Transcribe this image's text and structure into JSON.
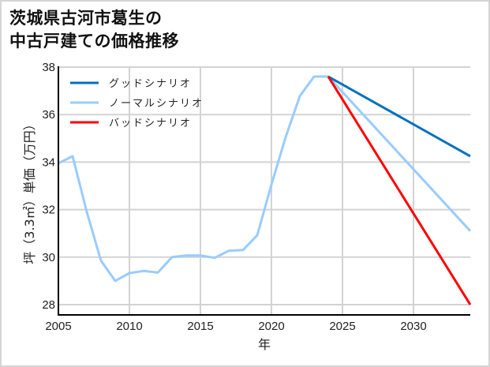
{
  "title": {
    "line1": "茨城県古河市葛生の",
    "line2": "中古戸建ての価格推移"
  },
  "chart_data": {
    "type": "line",
    "title": "茨城県古河市葛生の中古戸建ての価格推移",
    "xlabel": "年",
    "ylabel": "坪（3.3㎡）単価（万円）",
    "xlim": [
      2005,
      2034
    ],
    "ylim": [
      27.6,
      38
    ],
    "x_ticks": [
      2005,
      2010,
      2015,
      2020,
      2025,
      2030
    ],
    "y_ticks": [
      28,
      30,
      32,
      34,
      36,
      38
    ],
    "grid": true,
    "legend_position": "upper left",
    "series": [
      {
        "name": "ノーマルシナリオ",
        "color": "#99ccff",
        "x": [
          2005,
          2006,
          2007,
          2008,
          2009,
          2010,
          2011,
          2012,
          2013,
          2014,
          2015,
          2016,
          2017,
          2018,
          2019,
          2020,
          2021,
          2022,
          2023,
          2024,
          2034
        ],
        "values": [
          33.95,
          34.25,
          31.9,
          29.85,
          29.0,
          29.33,
          29.42,
          29.35,
          30.0,
          30.07,
          30.07,
          29.97,
          30.27,
          30.3,
          30.92,
          33.05,
          35.05,
          36.78,
          37.6,
          37.6,
          31.1
        ]
      },
      {
        "name": "グッドシナリオ",
        "color": "#0070c0",
        "x": [
          2024,
          2034
        ],
        "values": [
          37.6,
          34.25
        ]
      },
      {
        "name": "バッドシナリオ",
        "color": "#ff0000",
        "x": [
          2024,
          2034
        ],
        "values": [
          37.6,
          28.0
        ]
      }
    ]
  },
  "legend": {
    "items": [
      {
        "label": "グッドシナリオ",
        "color": "#0070c0"
      },
      {
        "label": "ノーマルシナリオ",
        "color": "#99ccff"
      },
      {
        "label": "バッドシナリオ",
        "color": "#ff0000"
      }
    ]
  },
  "colors": {
    "grid": "#d3d3d3",
    "axis": "#000000",
    "frame": "#d4d4d4"
  }
}
